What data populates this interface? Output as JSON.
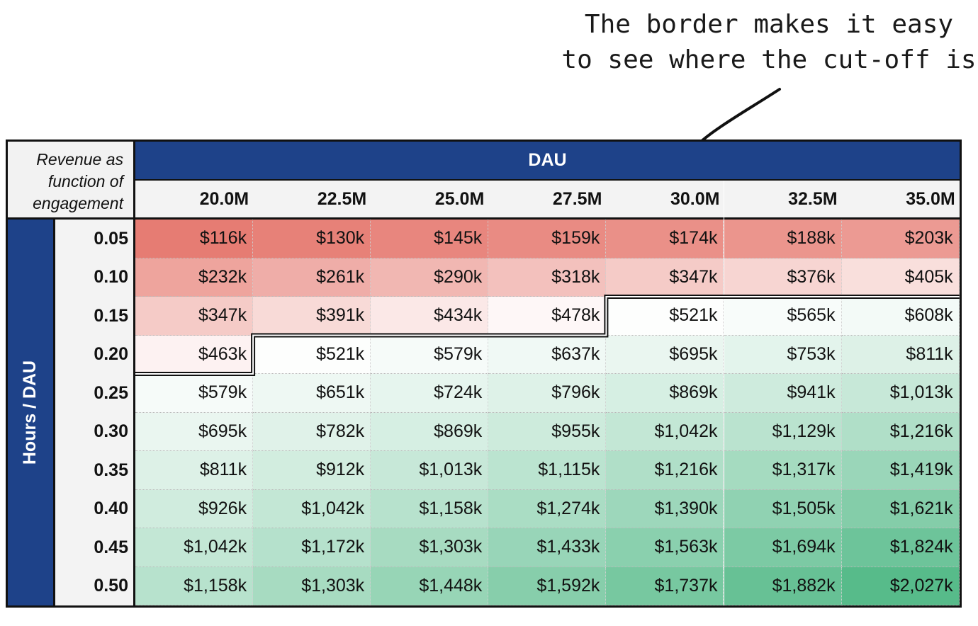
{
  "annotation": {
    "line1": "The border makes it easy",
    "line2": "to see where the cut-off is"
  },
  "table": {
    "corner_lines": [
      "Revenue as",
      "function of",
      "engagement"
    ],
    "column_group_label": "DAU",
    "row_group_label": "Hours / DAU"
  },
  "colors": {
    "header_blue": "#1e4289",
    "low_red": "#e67c73",
    "mid_white": "#ffffff",
    "high_green": "#57bb8a"
  },
  "chart_data": {
    "type": "heatmap",
    "title": "",
    "xlabel": "DAU",
    "ylabel": "Hours / DAU",
    "columns": [
      "20.0M",
      "22.5M",
      "25.0M",
      "27.5M",
      "30.0M",
      "32.5M",
      "35.0M"
    ],
    "rows": [
      "0.05",
      "0.10",
      "0.15",
      "0.20",
      "0.25",
      "0.30",
      "0.35",
      "0.40",
      "0.45",
      "0.50"
    ],
    "values": [
      [
        "$116k",
        "$130k",
        "$145k",
        "$159k",
        "$174k",
        "$188k",
        "$203k"
      ],
      [
        "$232k",
        "$261k",
        "$290k",
        "$318k",
        "$347k",
        "$376k",
        "$405k"
      ],
      [
        "$347k",
        "$391k",
        "$434k",
        "$478k",
        "$521k",
        "$565k",
        "$608k"
      ],
      [
        "$463k",
        "$521k",
        "$579k",
        "$637k",
        "$695k",
        "$753k",
        "$811k"
      ],
      [
        "$579k",
        "$651k",
        "$724k",
        "$796k",
        "$869k",
        "$941k",
        "$1,013k"
      ],
      [
        "$695k",
        "$782k",
        "$869k",
        "$955k",
        "$1,042k",
        "$1,129k",
        "$1,216k"
      ],
      [
        "$811k",
        "$912k",
        "$1,013k",
        "$1,115k",
        "$1,216k",
        "$1,317k",
        "$1,419k"
      ],
      [
        "$926k",
        "$1,042k",
        "$1,158k",
        "$1,274k",
        "$1,390k",
        "$1,505k",
        "$1,621k"
      ],
      [
        "$1,042k",
        "$1,172k",
        "$1,303k",
        "$1,433k",
        "$1,563k",
        "$1,694k",
        "$1,824k"
      ],
      [
        "$1,158k",
        "$1,303k",
        "$1,448k",
        "$1,592k",
        "$1,737k",
        "$1,882k",
        "$2,027k"
      ]
    ],
    "numeric_values_k": [
      [
        116,
        130,
        145,
        159,
        174,
        188,
        203
      ],
      [
        232,
        261,
        290,
        318,
        347,
        376,
        405
      ],
      [
        347,
        391,
        434,
        478,
        521,
        565,
        608
      ],
      [
        463,
        521,
        579,
        637,
        695,
        753,
        811
      ],
      [
        579,
        651,
        724,
        796,
        869,
        941,
        1013
      ],
      [
        695,
        782,
        869,
        955,
        1042,
        1129,
        1216
      ],
      [
        811,
        912,
        1013,
        1115,
        1216,
        1317,
        1419
      ],
      [
        926,
        1042,
        1158,
        1274,
        1390,
        1505,
        1621
      ],
      [
        1042,
        1172,
        1303,
        1433,
        1563,
        1694,
        1824
      ],
      [
        1158,
        1303,
        1448,
        1592,
        1737,
        1882,
        2027
      ]
    ],
    "cutoff_value_k": 500,
    "color_scale": "red-white-green"
  }
}
